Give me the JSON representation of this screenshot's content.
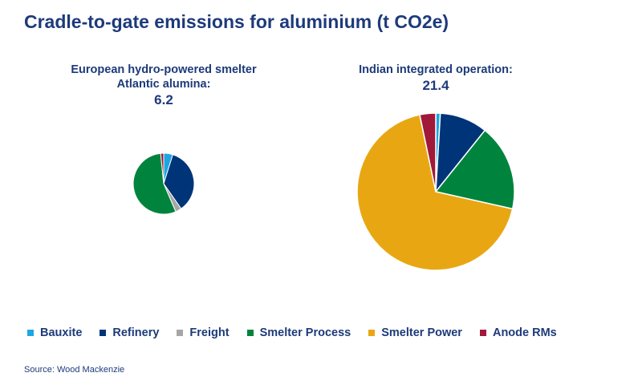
{
  "title": "Cradle-to-gate emissions for aluminium (t CO2e)",
  "source": "Source: Wood Mackenzie",
  "chart_data": [
    {
      "type": "pie",
      "title": "European hydro-powered smelter Atlantic alumina:",
      "total": "6.2",
      "categories": [
        "Bauxite",
        "Refinery",
        "Freight",
        "Smelter Process",
        "Smelter Power",
        "Anode RMs"
      ],
      "values": [
        0.3,
        2.2,
        0.2,
        3.4,
        0,
        0.1
      ]
    },
    {
      "type": "pie",
      "title": "Indian integrated operation:",
      "total": "21.4",
      "categories": [
        "Bauxite",
        "Refinery",
        "Freight",
        "Smelter Process",
        "Smelter Power",
        "Anode RMs"
      ],
      "values": [
        0.2,
        2.1,
        0,
        3.8,
        14.6,
        0.7
      ]
    }
  ],
  "legend": [
    {
      "label": "Bauxite",
      "color": "#1ea6e0"
    },
    {
      "label": "Refinery",
      "color": "#003478"
    },
    {
      "label": "Freight",
      "color": "#a6a6a6"
    },
    {
      "label": "Smelter Process",
      "color": "#00843d"
    },
    {
      "label": "Smelter Power",
      "color": "#e8a712"
    },
    {
      "label": "Anode RMs",
      "color": "#a0183a"
    }
  ],
  "legend_placement": "bottom"
}
